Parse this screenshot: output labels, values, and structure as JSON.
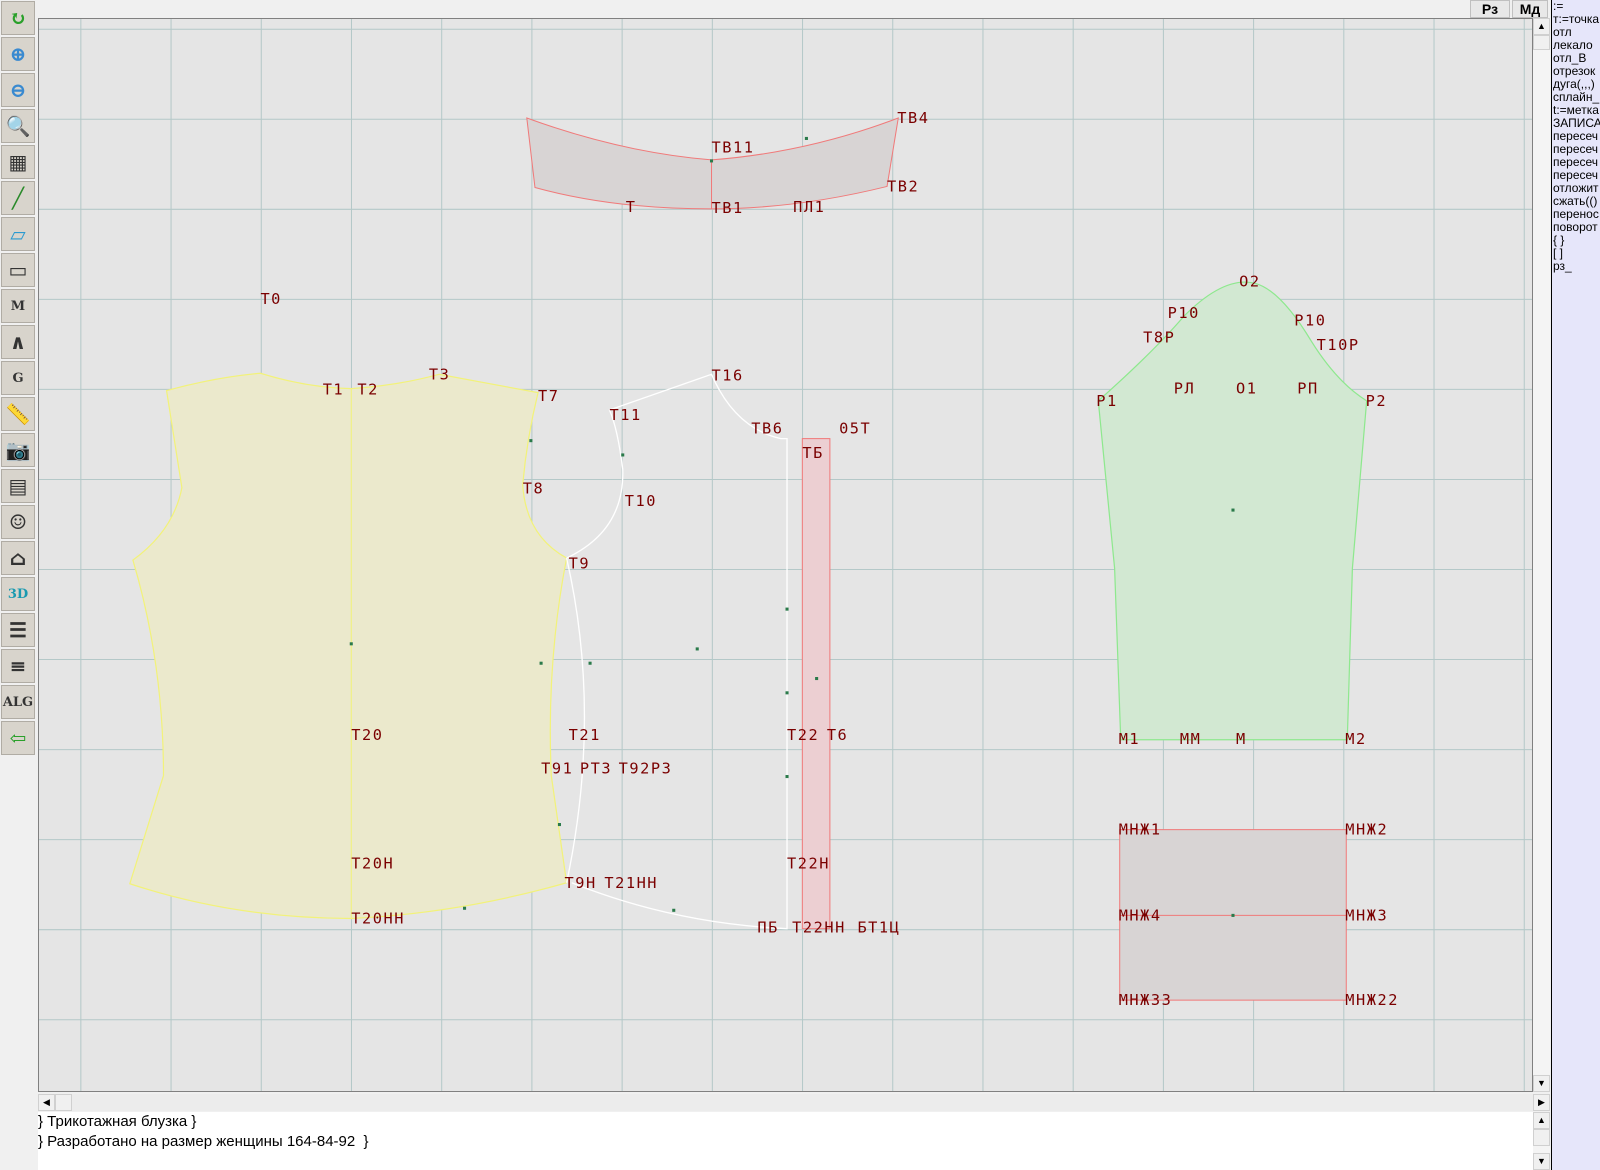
{
  "toolbar": {
    "items": [
      {
        "icon": "refresh-icon",
        "text": ""
      },
      {
        "icon": "zoom-in-icon",
        "text": ""
      },
      {
        "icon": "zoom-out-icon",
        "text": ""
      },
      {
        "icon": "zoom-pattern-icon",
        "text": ""
      },
      {
        "icon": "grid-icon",
        "text": ""
      },
      {
        "icon": "line-segment-icon",
        "text": ""
      },
      {
        "icon": "map-icon",
        "text": ""
      },
      {
        "icon": "pattern-piece-icon",
        "text": ""
      },
      {
        "icon": "pattern-m-icon",
        "text": "M"
      },
      {
        "icon": "compass-icon",
        "text": ""
      },
      {
        "icon": "grading-g-icon",
        "text": "G"
      },
      {
        "icon": "ruler-icon",
        "text": ""
      },
      {
        "icon": "camera-icon",
        "text": ""
      },
      {
        "icon": "spreadsheet-icon",
        "text": ""
      },
      {
        "icon": "model-photo-icon",
        "text": ""
      },
      {
        "icon": "jacket-sketch-icon",
        "text": ""
      },
      {
        "icon": "3d-icon",
        "text": "3D"
      },
      {
        "icon": "text-list-icon",
        "text": ""
      },
      {
        "icon": "books-icon",
        "text": ""
      },
      {
        "icon": "algorithm-icon",
        "text": "ALG"
      },
      {
        "icon": "exit-door-icon",
        "text": ""
      }
    ]
  },
  "top_buttons": {
    "rz": "Рз",
    "md": "Мд"
  },
  "command_panel": {
    "items": [
      ":=",
      "т:=точка",
      "отл",
      "лекало",
      "отл_В",
      "отрезок",
      "дуга(,,,)",
      "сплайн_",
      "t:=метка",
      "ЗАПИСА",
      "пересеч",
      "пересеч",
      "пересеч",
      "пересеч",
      "отложит",
      "сжать(()",
      "перенос",
      "поворот",
      "{ }",
      "[ ]",
      "рз_"
    ]
  },
  "canvas": {
    "colors": {
      "background": "#e5e5e5",
      "grid": "#b4c8c8",
      "label": "#7a0000",
      "front_fill": "#ebe9cc",
      "front_stroke": "#f2f27a",
      "collar_fill": "#d8d4d4",
      "red_stroke": "#f07a7a",
      "sleeve_fill": "#d2e8d2",
      "sleeve_stroke": "#8ee88e",
      "strip_fill": "#eccfd2"
    },
    "labels": [
      "Т0",
      "Т1",
      "Т2",
      "Т3",
      "Т7",
      "Т8",
      "Т9",
      "Т11",
      "Т10",
      "Т16",
      "ТВ6",
      "05Т",
      "ТБ",
      "ТВ4",
      "ТВ11",
      "ТВ1",
      "ПЛ1",
      "ТВ2",
      "Т",
      "О2",
      "Р10",
      "Т8Р",
      "Р10",
      "Т10Р",
      "Р1",
      "РЛ",
      "О1",
      "РП",
      "Р2",
      "М1",
      "ММ",
      "М",
      "М2",
      "МНЖ1",
      "МНЖ2",
      "МНЖ4",
      "МНЖ3",
      "МНЖ33",
      "МНЖ22",
      "Т20",
      "Т21",
      "Т91",
      "РТ3",
      "Т92Р3",
      "Т22",
      "Т6",
      "Т20Н",
      "Т20НН",
      "Т22Н",
      "Т9Н",
      "Т21НН",
      "ПБ",
      "Т22НН",
      "БТ1Ц"
    ]
  },
  "notes": {
    "lines": [
      "} Трикотажная блузка }",
      "} Разработано на размер женщины 164-84-92  }"
    ]
  }
}
